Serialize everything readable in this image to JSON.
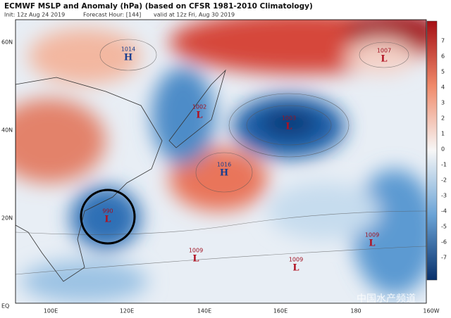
{
  "header": {
    "title": "ECMWF MSLP and Anomaly (hPa) (based on CFSR 1981-2010 Climatology)",
    "init": "Init: 12z Aug 24 2019",
    "forecast": "Forecast Hour: [144]",
    "valid": "valid at 12z Fri, Aug 30 2019"
  },
  "map": {
    "lat_labels": [
      "60N",
      "40N",
      "20N",
      "EQ"
    ],
    "lon_labels": [
      "100E",
      "120E",
      "140E",
      "160E",
      "180",
      "160W"
    ],
    "centers": [
      {
        "value": "1014",
        "letter": "H"
      },
      {
        "value": "1002",
        "letter": "L"
      },
      {
        "value": "1003",
        "letter": "L"
      },
      {
        "value": "1016",
        "letter": "H"
      },
      {
        "value": "990",
        "letter": "L"
      },
      {
        "value": "1009",
        "letter": "L"
      },
      {
        "value": "1009",
        "letter": "L"
      },
      {
        "value": "1009",
        "letter": "L"
      },
      {
        "value": "1007",
        "letter": "L"
      }
    ],
    "watermark": "中国水产频道"
  },
  "colorbar": {
    "ticks": [
      7,
      6,
      5,
      4,
      3,
      2,
      1,
      0,
      -1,
      -2,
      -3,
      -4,
      -5,
      -6,
      -7
    ]
  }
}
